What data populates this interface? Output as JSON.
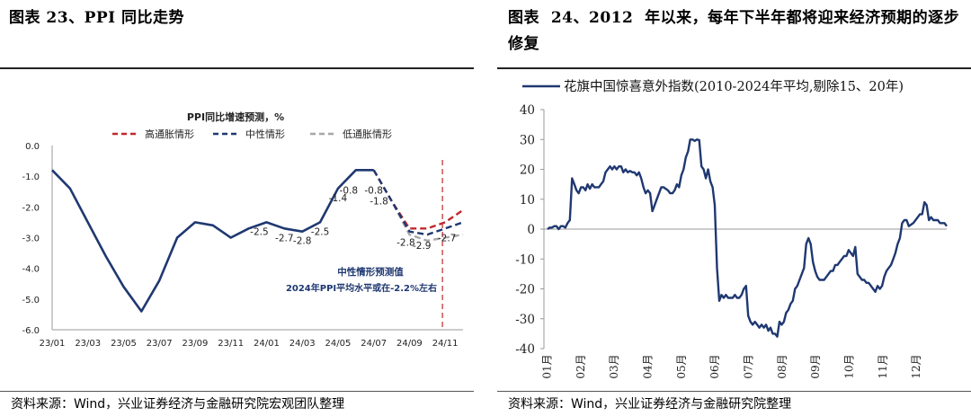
{
  "left_panel": {
    "title": "图表 23、PPI 同比走势",
    "source": "资料来源：Wind，兴业证券经济与金融研究院宏观团队整理"
  },
  "right_panel": {
    "title": "图表  24、2012  年以来，每年下半年都将迎来经济预期的逐步修复",
    "source": "资料来源：Wind，兴业证券经济与金融研究院整理"
  },
  "colors": {
    "navy": "#1f3871",
    "red": "#c0282c",
    "gray": "#a6a6a6"
  },
  "chart_data": [
    {
      "type": "line",
      "title": "PPI同比增速预测，%",
      "x": [
        "23/01",
        "23/02",
        "23/03",
        "23/04",
        "23/05",
        "23/06",
        "23/07",
        "23/08",
        "23/09",
        "23/10",
        "23/11",
        "23/12",
        "24/01",
        "24/02",
        "24/03",
        "24/04",
        "24/05",
        "24/06",
        "24/07",
        "24/08",
        "24/09",
        "24/10",
        "24/11",
        "24/12"
      ],
      "xticks": [
        "23/01",
        "23/03",
        "23/05",
        "23/07",
        "23/09",
        "23/11",
        "24/01",
        "24/03",
        "24/05",
        "24/07",
        "24/09",
        "24/11"
      ],
      "ylim": [
        -6.0,
        0.0
      ],
      "yticks": [
        "0.0",
        "-1.0",
        "-2.0",
        "-3.0",
        "-4.0",
        "-5.0",
        "-6.0"
      ],
      "series": [
        {
          "values": [
            -0.8,
            -1.4,
            -2.5,
            -3.6,
            -4.6,
            -5.4,
            -4.4,
            -3.0,
            -2.5,
            -2.6,
            -3.0,
            -2.7,
            -2.5,
            -2.7,
            -2.8,
            -2.5,
            -1.4,
            -0.8,
            -0.8,
            null,
            null,
            null,
            null,
            null
          ]
        },
        {
          "name": "高通胀情形",
          "style": "dashed",
          "values": [
            null,
            null,
            null,
            null,
            null,
            null,
            null,
            null,
            null,
            null,
            null,
            null,
            null,
            null,
            null,
            null,
            null,
            null,
            -0.8,
            -1.8,
            -2.7,
            -2.7,
            -2.5,
            -2.1
          ]
        },
        {
          "name": "中性情形",
          "style": "dashed",
          "values": [
            null,
            null,
            null,
            null,
            null,
            null,
            null,
            null,
            null,
            null,
            null,
            null,
            null,
            null,
            null,
            null,
            null,
            null,
            -0.8,
            -1.8,
            -2.8,
            -2.9,
            -2.7,
            -2.5
          ]
        },
        {
          "name": "低通胀情形",
          "style": "dashed",
          "values": [
            null,
            null,
            null,
            null,
            null,
            null,
            null,
            null,
            null,
            null,
            null,
            null,
            null,
            null,
            null,
            null,
            null,
            null,
            -0.8,
            -1.8,
            -2.9,
            -3.1,
            -3.0,
            -2.9
          ]
        }
      ],
      "data_labels": [
        {
          "x": "24/01",
          "y": -2.5,
          "text": "-2.5"
        },
        {
          "x": "24/02",
          "y": -2.7,
          "text": "-2.7"
        },
        {
          "x": "24/03",
          "y": -2.8,
          "text": "-2.8"
        },
        {
          "x": "24/04",
          "y": -2.5,
          "text": "-2.5"
        },
        {
          "x": "24/05",
          "y": -1.4,
          "text": "-1.4"
        },
        {
          "x": "24/06",
          "y": -0.8,
          "text": "-0.8"
        },
        {
          "x": "24/07",
          "y": -0.8,
          "text": "-0.8"
        },
        {
          "x": "24/08",
          "y": -1.8,
          "text": "-1.8"
        },
        {
          "x": "24/09",
          "y": -2.8,
          "text": "-2.8"
        },
        {
          "x": "24/10",
          "y": -2.9,
          "text": "-2.9"
        },
        {
          "x": "24/11",
          "y": -2.7,
          "text": "-2.7"
        }
      ],
      "annotation": [
        "中性情形预测值",
        "2024年PPI平均水平或在-2.2%左右"
      ],
      "marker_line": {
        "x": "24/11",
        "style": "dashed",
        "color": "#c0282c"
      },
      "legend": "top",
      "grid": false
    },
    {
      "type": "line",
      "series": [
        {
          "name": "花旗中国惊喜意外指数(2010-2024年平均,剔除15、20年)",
          "values": [
            0,
            0.5,
            0.5,
            1,
            1,
            0,
            1,
            1,
            0.5,
            2,
            3,
            17,
            15,
            13,
            12,
            14,
            14,
            13,
            15,
            13.5,
            15,
            14,
            14,
            14,
            15,
            16,
            19,
            20,
            21,
            20,
            21,
            20,
            21,
            21,
            19,
            20,
            19,
            19.5,
            19,
            19,
            18,
            19,
            17,
            14,
            12,
            13,
            12,
            6,
            8,
            10,
            12,
            14,
            14,
            13.5,
            13,
            12,
            12,
            13,
            15,
            14,
            18,
            20,
            24,
            26,
            30,
            30,
            29.5,
            30,
            29.8,
            21,
            20,
            17,
            20,
            16,
            14,
            8,
            -13,
            -24,
            -22,
            -23,
            -22,
            -23,
            -23,
            -23,
            -22,
            -23,
            -23,
            -22,
            -20,
            -19,
            -29,
            -31,
            -32,
            -31,
            -32,
            -33,
            -32,
            -33,
            -32,
            -34,
            -33,
            -35,
            -35,
            -36,
            -31,
            -32,
            -31,
            -28,
            -27,
            -25,
            -24,
            -20,
            -19,
            -17,
            -15,
            -13,
            -5,
            -3,
            -5,
            -11,
            -14,
            -16,
            -17,
            -17,
            -17,
            -16,
            -15,
            -14,
            -14,
            -12,
            -12,
            -11,
            -10,
            -9,
            -9,
            -7,
            -8,
            -9,
            -6,
            -15,
            -16,
            -17,
            -17,
            -18,
            -18,
            -19,
            -20,
            -21,
            -19,
            -20,
            -19,
            -16,
            -14,
            -13,
            -12,
            -10,
            -8,
            -5,
            -3,
            2,
            3,
            3,
            1,
            1.5,
            2,
            3,
            4,
            5,
            5,
            9,
            8,
            3,
            4,
            3,
            3,
            3,
            2,
            2,
            2,
            1
          ]
        }
      ],
      "yticks": [
        "40",
        "30",
        "20",
        "10",
        "0",
        "-10",
        "-20",
        "-30",
        "-40"
      ],
      "ylim": [
        -40,
        40
      ],
      "xticks": [
        "01月",
        "02月",
        "03月",
        "04月",
        "05月",
        "06月",
        "07月",
        "08月",
        "09月",
        "10月",
        "11月",
        "12月"
      ],
      "legend": "top-left",
      "grid": false
    }
  ]
}
